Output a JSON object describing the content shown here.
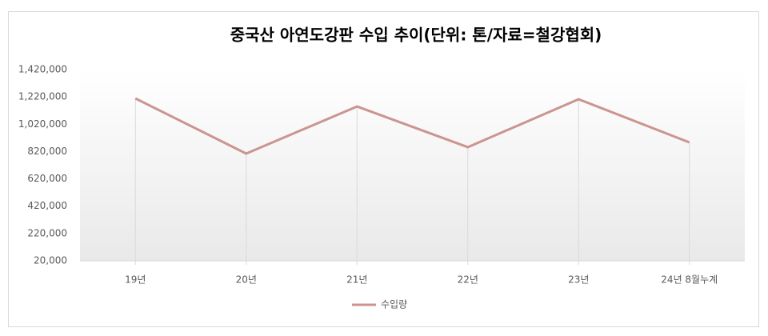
{
  "chart_data": {
    "type": "line",
    "title": "중국산 아연도강판 수입 추이(단위: 톤/자료=철강협회)",
    "categories": [
      "19년",
      "20년",
      "21년",
      "22년",
      "23년",
      "24년 8월누계"
    ],
    "series": [
      {
        "name": "수입량",
        "color": "#cc9490",
        "values": [
          1209000,
          805000,
          1150000,
          852000,
          1203000,
          887000
        ]
      }
    ],
    "ylim": [
      20000,
      1420000
    ],
    "yticks": [
      {
        "value": 20000,
        "label": "20,000"
      },
      {
        "value": 220000,
        "label": "220,000"
      },
      {
        "value": 420000,
        "label": "420,000"
      },
      {
        "value": 620000,
        "label": "620,000"
      },
      {
        "value": 820000,
        "label": "820,000"
      },
      {
        "value": 1020000,
        "label": "1,020,000"
      },
      {
        "value": 1220000,
        "label": "1,220,000"
      },
      {
        "value": 1420000,
        "label": "1,420,000"
      }
    ],
    "grid": false,
    "drop_lines": true,
    "legend": "bottom"
  }
}
